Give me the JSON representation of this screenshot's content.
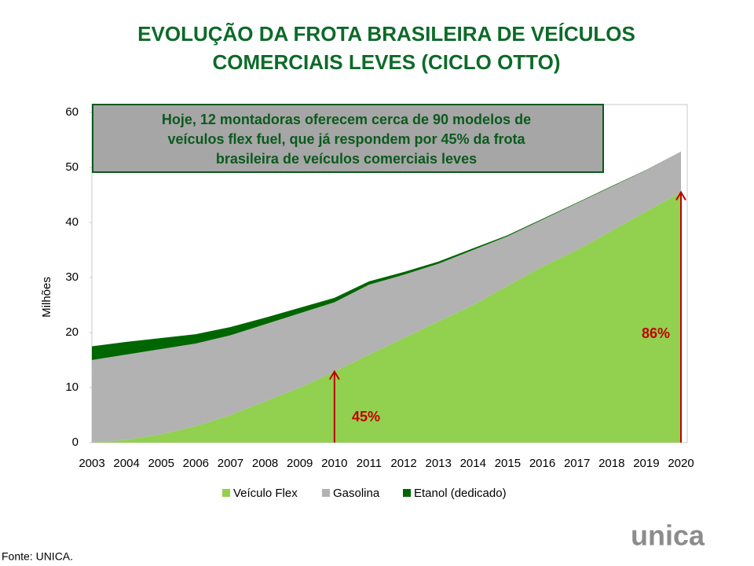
{
  "chart_data": {
    "type": "stacked-area",
    "title": [
      "EVOLUÇÃO DA FROTA BRASILEIRA DE VEÍCULOS",
      "COMERCIAIS LEVES (CICLO OTTO)"
    ],
    "y_label": "Milhões",
    "callout": [
      "Hoje, 12 montadoras oferecem cerca de 90 modelos de",
      "veículos flex fuel, que já respondem por 45% da frota",
      "brasileira de veículos comerciais leves"
    ],
    "annotations": [
      "45%",
      "86%"
    ],
    "source": "Fonte: UNICA.",
    "logo": "unica",
    "categories": [
      "2003",
      "2004",
      "2005",
      "2006",
      "2007",
      "2008",
      "2009",
      "2010",
      "2011",
      "2012",
      "2013",
      "2014",
      "2015",
      "2016",
      "2017",
      "2018",
      "2019",
      "2020"
    ],
    "series": [
      {
        "name": "Veículo Flex",
        "color": "#92d050",
        "values": [
          0,
          0.5,
          1.5,
          3,
          5,
          7.5,
          10,
          12.9,
          16,
          19,
          22,
          25,
          28.5,
          32,
          35,
          38.5,
          42,
          45.5
        ]
      },
      {
        "name": "Gasolina",
        "color": "#b2b2b2",
        "values": [
          15,
          15.5,
          15.5,
          15,
          14.5,
          14,
          13.5,
          12.6,
          12.7,
          11.5,
          10.5,
          10,
          9,
          8.5,
          8.5,
          8,
          7.5,
          7.4
        ]
      },
      {
        "name": "Etanol (dedicado)",
        "color": "#006600",
        "values": [
          2.5,
          2.3,
          2,
          1.7,
          1.5,
          1.2,
          1,
          0.8,
          0.6,
          0.5,
          0.4,
          0.3,
          0.2,
          0.15,
          0.1,
          0.1,
          0.05,
          0
        ]
      }
    ],
    "ylim": [
      0,
      60
    ],
    "yticks": [
      0,
      10,
      20,
      30,
      40,
      50,
      60
    ]
  }
}
